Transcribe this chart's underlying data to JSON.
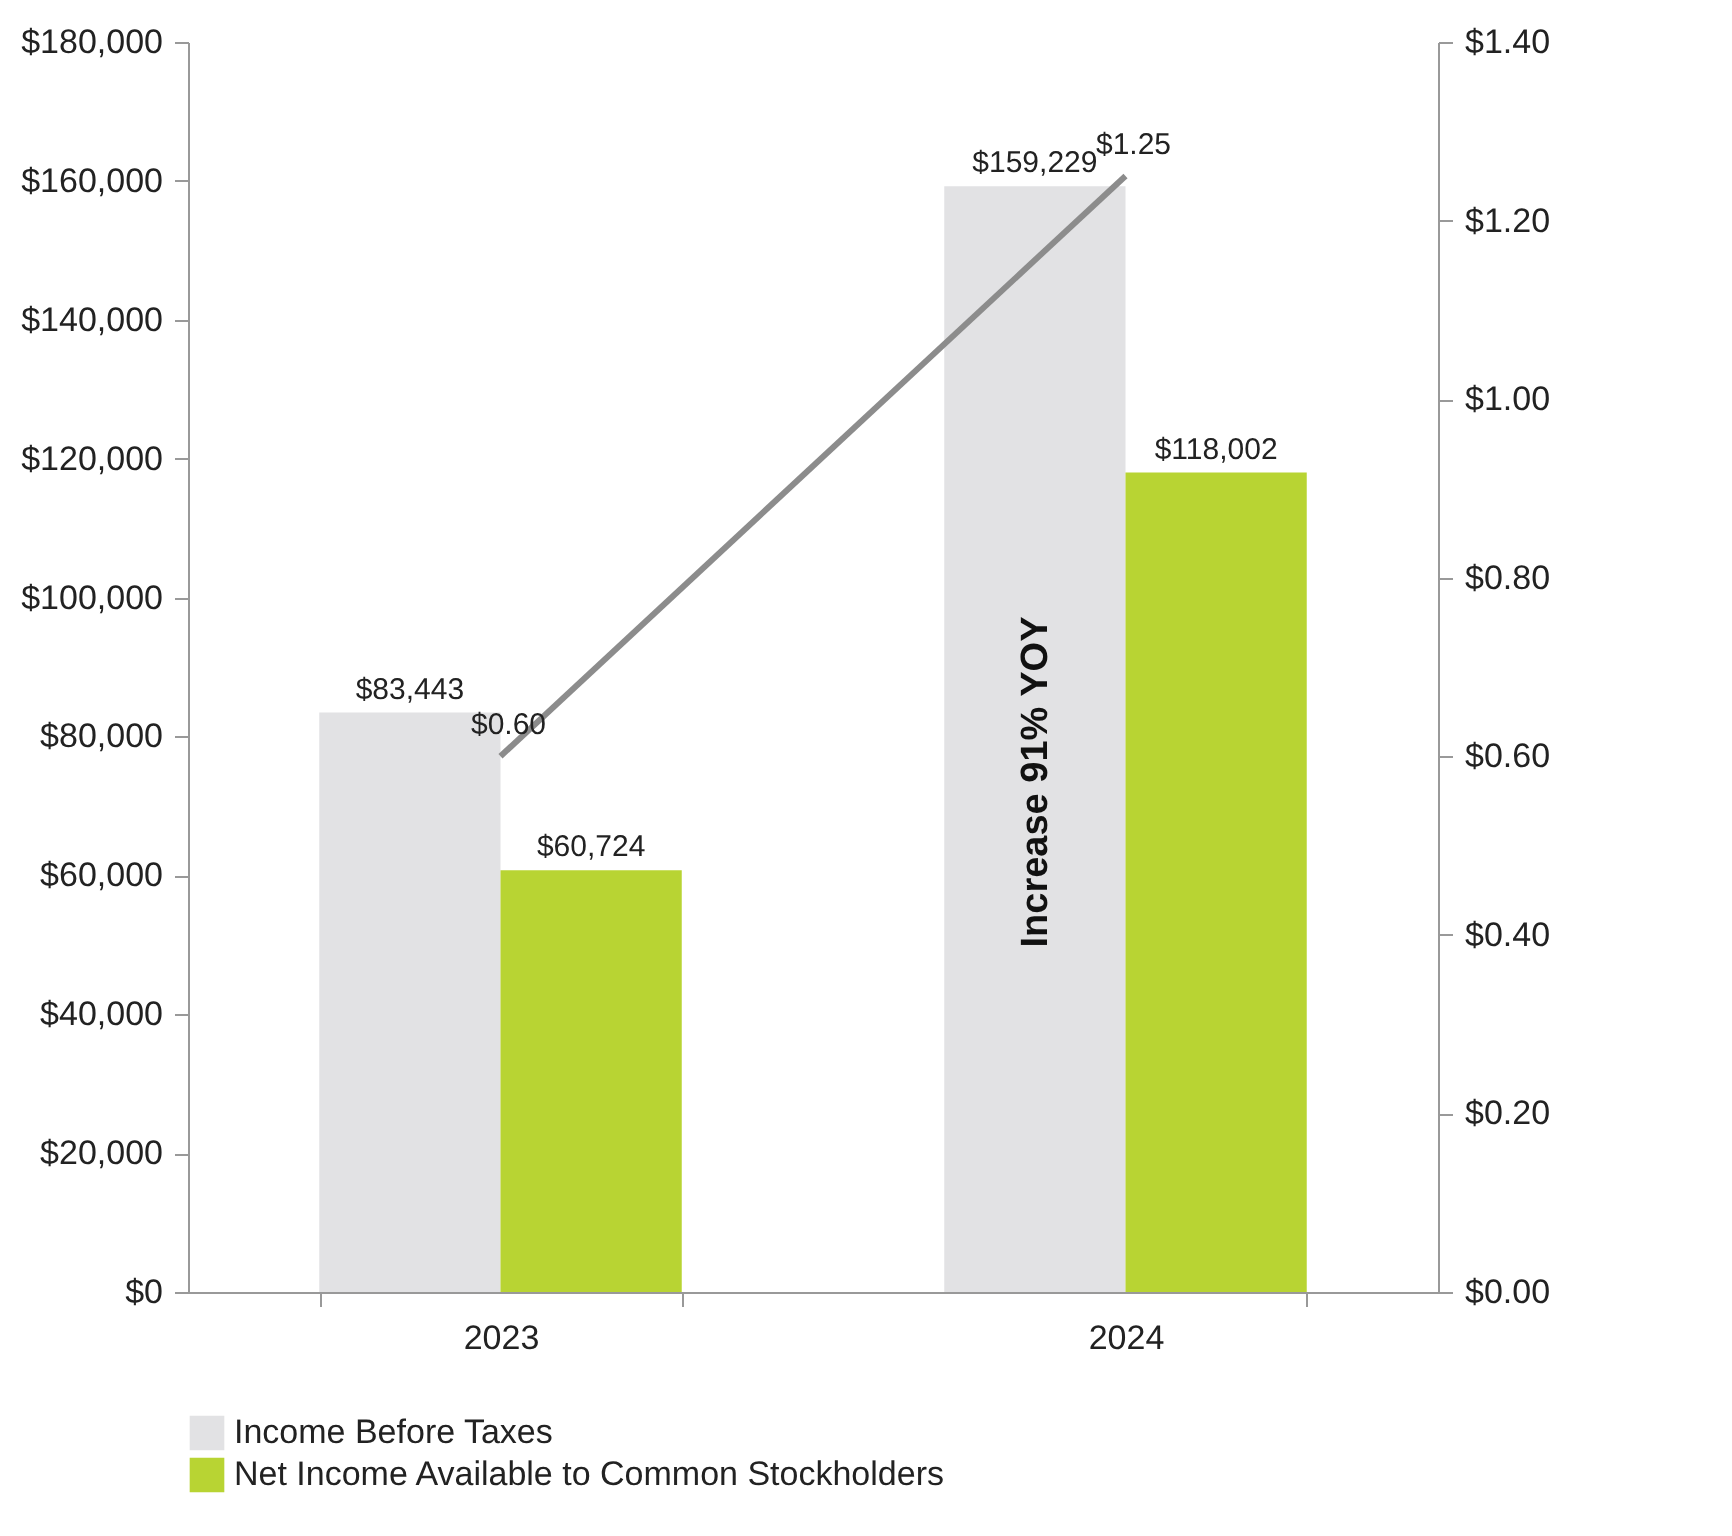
{
  "chart_data": {
    "type": "bar",
    "categories": [
      "2023",
      "2024"
    ],
    "series": [
      {
        "name": "Income Before Taxes",
        "color": "#e2e2e4",
        "values": [
          83443,
          159229
        ],
        "value_labels": [
          "$83,443",
          "$159,229"
        ]
      },
      {
        "name": "Net Income Available to Common Stockholders",
        "color": "#b8d433",
        "values": [
          60724,
          118002
        ],
        "value_labels": [
          "$60,724",
          "$118,002"
        ]
      },
      {
        "type": "line",
        "axis": "y2",
        "color": "#8c8c8c",
        "values": [
          0.6,
          1.25
        ],
        "value_labels": [
          "$0.60",
          "$1.25"
        ]
      }
    ],
    "ylim": [
      0,
      180000
    ],
    "yticks": [
      {
        "value": 0,
        "label": "$0"
      },
      {
        "value": 20000,
        "label": "$20,000"
      },
      {
        "value": 40000,
        "label": "$40,000"
      },
      {
        "value": 60000,
        "label": "$60,000"
      },
      {
        "value": 80000,
        "label": "$80,000"
      },
      {
        "value": 100000,
        "label": "$100,000"
      },
      {
        "value": 120000,
        "label": "$120,000"
      },
      {
        "value": 140000,
        "label": "$140,000"
      },
      {
        "value": 160000,
        "label": "$160,000"
      },
      {
        "value": 180000,
        "label": "$180,000"
      }
    ],
    "y2lim": [
      0,
      1.4
    ],
    "y2ticks": [
      {
        "value": 0,
        "label": "$0.00"
      },
      {
        "value": 0.2,
        "label": "$0.20"
      },
      {
        "value": 0.4,
        "label": "$0.40"
      },
      {
        "value": 0.6,
        "label": "$0.60"
      },
      {
        "value": 0.8,
        "label": "$0.80"
      },
      {
        "value": 1.0,
        "label": "$1.00"
      },
      {
        "value": 1.2,
        "label": "$1.20"
      },
      {
        "value": 1.4,
        "label": "$1.40"
      }
    ],
    "annotations": [
      "Increase 91% YOY"
    ],
    "grid": false,
    "legend": "bottom left"
  }
}
